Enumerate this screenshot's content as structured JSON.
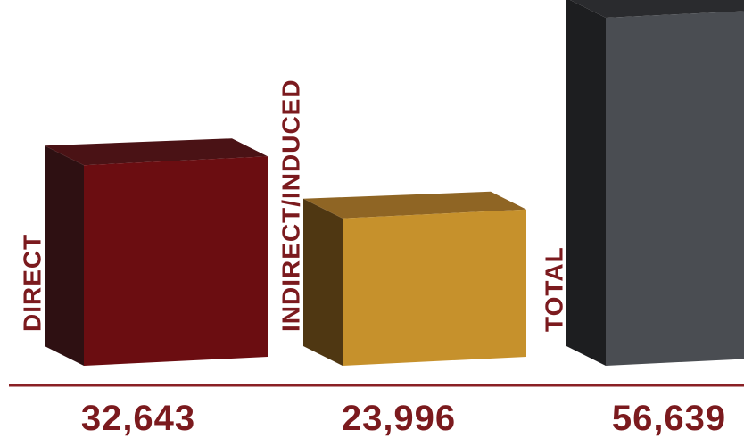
{
  "chart_data": {
    "type": "bar",
    "style": "3d",
    "categories": [
      "DIRECT",
      "INDIRECT/INDUCED",
      "TOTAL"
    ],
    "values": [
      32643,
      23996,
      56639
    ],
    "value_labels": [
      "32,643",
      "23,996",
      "56,639"
    ],
    "title": "",
    "xlabel": "",
    "ylabel": "",
    "ylim": [
      0,
      56639
    ],
    "grid": false,
    "legend": "none",
    "bar_colors": [
      {
        "front": "#6b0d11",
        "top": "#4a1215",
        "side": "#2e1012"
      },
      {
        "front": "#c6912c",
        "top": "#8f6524",
        "side": "#4f3712"
      },
      {
        "front": "#4a4d52",
        "top": "#2a2b2e",
        "side": "#1d1e20"
      }
    ],
    "label_color": "#7b1a1e",
    "baseline_color": "#8a2025"
  }
}
